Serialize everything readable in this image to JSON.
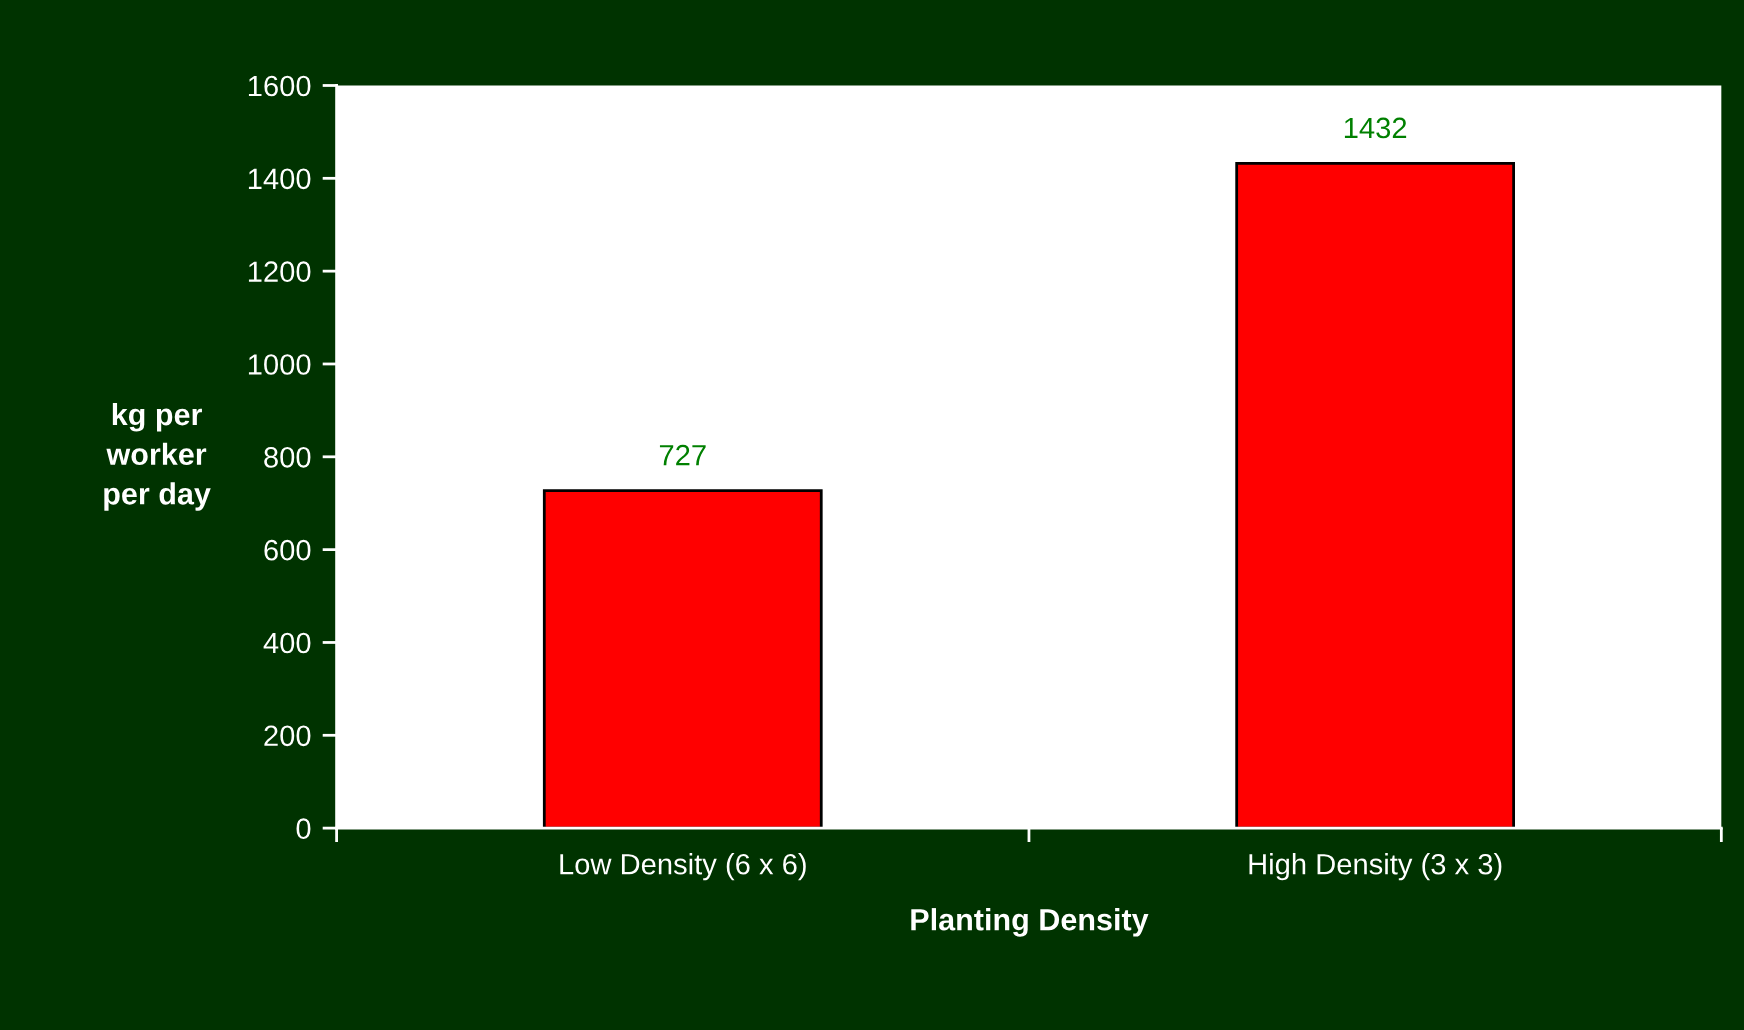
{
  "chart_data": {
    "type": "bar",
    "xlabel": "Planting Density",
    "ylabel": "kg per\nworker\nper day",
    "categories": [
      "Low Density (6 x 6)",
      "High Density (3 x 3)"
    ],
    "values": [
      727,
      1432
    ],
    "color": "#ff0000",
    "data_labels": true,
    "ylim": [
      0,
      1600
    ],
    "yticks": [
      0,
      200,
      400,
      600,
      800,
      1000,
      1200,
      1400,
      1600
    ],
    "grid": false,
    "legend": false
  }
}
